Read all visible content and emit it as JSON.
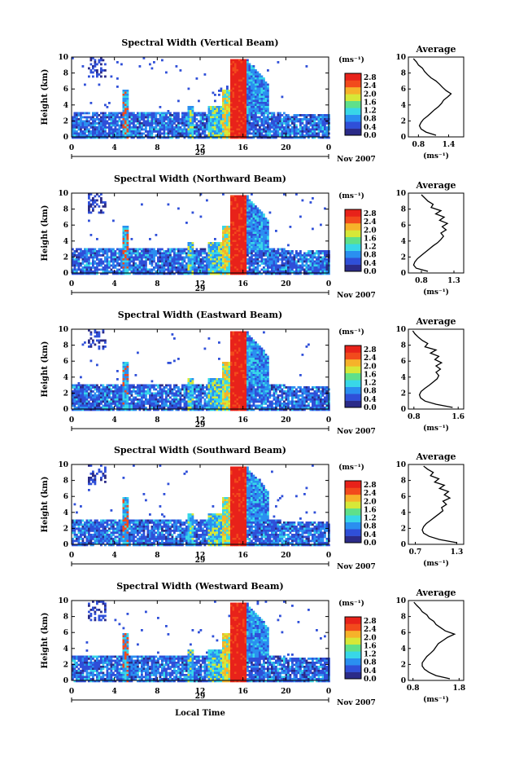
{
  "figure": {
    "xlabel": "Local Time",
    "date_label": "Nov 2007",
    "day_label": "29",
    "unit_label": "(ms⁻¹)",
    "avg_title": "Average"
  },
  "chart_data": [
    {
      "type": "heatmap",
      "title": "Spectral Width (Vertical Beam)",
      "ylabel": "Height (km)",
      "xlabel": "",
      "x_ticks": [
        "0",
        "4",
        "8",
        "12",
        "16",
        "20",
        "0"
      ],
      "y_ticks": [
        "0",
        "2",
        "4",
        "6",
        "8",
        "10"
      ],
      "xlim": [
        0,
        24
      ],
      "ylim": [
        0,
        10
      ],
      "colorbar_ticks": [
        "0.0",
        "0.4",
        "0.8",
        "1.2",
        "1.6",
        "2.0",
        "2.4",
        "2.8"
      ],
      "colorbar_range": [
        0.0,
        3.0
      ],
      "colors": [
        "#2b2b88",
        "#2f4fd8",
        "#2a8ff0",
        "#38d7e8",
        "#5fe08a",
        "#d6e838",
        "#f6b22a",
        "#f24a1c",
        "#e8221a"
      ],
      "avg_profile": {
        "xlabel": "(ms⁻¹)",
        "x_ticks": [
          "0.8",
          "1.4"
        ],
        "x_tick_values": [
          0.8,
          1.4
        ],
        "xlim": [
          0.6,
          1.7
        ],
        "ylim": [
          0,
          10
        ],
        "y_ticks": [
          "0",
          "2",
          "4",
          "6",
          "8",
          "10"
        ],
        "heights": [
          0.2,
          0.6,
          1.0,
          1.4,
          1.8,
          2.2,
          2.6,
          3.0,
          3.4,
          3.8,
          4.2,
          4.6,
          5.0,
          5.4,
          5.8,
          6.2,
          6.6,
          7.0,
          7.4,
          7.8,
          8.2,
          8.6,
          9.0,
          9.4,
          9.8
        ],
        "values": [
          1.15,
          0.95,
          0.85,
          0.82,
          0.85,
          0.9,
          0.98,
          1.05,
          1.12,
          1.2,
          1.26,
          1.3,
          1.38,
          1.45,
          1.35,
          1.28,
          1.22,
          1.15,
          1.05,
          0.98,
          0.92,
          0.88,
          0.8,
          0.76,
          0.7
        ]
      }
    },
    {
      "type": "heatmap",
      "title": "Spectral Width (Northward Beam)",
      "ylabel": "Height (km)",
      "xlabel": "",
      "x_ticks": [
        "0",
        "4",
        "8",
        "12",
        "16",
        "20",
        "0"
      ],
      "y_ticks": [
        "0",
        "2",
        "4",
        "6",
        "8",
        "10"
      ],
      "xlim": [
        0,
        24
      ],
      "ylim": [
        0,
        10
      ],
      "colorbar_ticks": [
        "0.0",
        "0.4",
        "0.8",
        "1.2",
        "1.6",
        "2.0",
        "2.4",
        "2.8"
      ],
      "colorbar_range": [
        0.0,
        3.0
      ],
      "colors": [
        "#2b2b88",
        "#2f4fd8",
        "#2a8ff0",
        "#38d7e8",
        "#5fe08a",
        "#d6e838",
        "#f6b22a",
        "#f24a1c",
        "#e8221a"
      ],
      "avg_profile": {
        "xlabel": "(ms⁻¹)",
        "x_ticks": [
          "0.8",
          "1.3"
        ],
        "x_tick_values": [
          0.8,
          1.3
        ],
        "xlim": [
          0.6,
          1.45
        ],
        "ylim": [
          0,
          10
        ],
        "y_ticks": [
          "0",
          "2",
          "4",
          "6",
          "8",
          "10"
        ],
        "heights": [
          0.2,
          0.6,
          1.0,
          1.4,
          1.8,
          2.2,
          2.6,
          3.0,
          3.4,
          3.8,
          4.2,
          4.6,
          5.0,
          5.4,
          5.8,
          6.2,
          6.6,
          7.0,
          7.4,
          7.8,
          8.2,
          8.6,
          9.0,
          9.4,
          9.8
        ],
        "values": [
          0.9,
          0.72,
          0.68,
          0.7,
          0.74,
          0.8,
          0.86,
          0.92,
          0.98,
          1.05,
          1.1,
          1.14,
          1.1,
          1.18,
          1.12,
          1.2,
          1.08,
          1.15,
          1.02,
          1.1,
          0.95,
          0.98,
          0.9,
          0.85,
          0.8
        ]
      }
    },
    {
      "type": "heatmap",
      "title": "Spectral Width (Eastward Beam)",
      "ylabel": "Height (km)",
      "xlabel": "",
      "x_ticks": [
        "0",
        "4",
        "8",
        "12",
        "16",
        "20",
        "0"
      ],
      "y_ticks": [
        "0",
        "2",
        "4",
        "6",
        "8",
        "10"
      ],
      "xlim": [
        0,
        24
      ],
      "ylim": [
        0,
        10
      ],
      "colorbar_ticks": [
        "0.0",
        "0.4",
        "0.8",
        "1.2",
        "1.6",
        "2.0",
        "2.4",
        "2.8"
      ],
      "colorbar_range": [
        0.0,
        3.0
      ],
      "colors": [
        "#2b2b88",
        "#2f4fd8",
        "#2a8ff0",
        "#38d7e8",
        "#5fe08a",
        "#d6e838",
        "#f6b22a",
        "#f24a1c",
        "#e8221a"
      ],
      "avg_profile": {
        "xlabel": "(ms⁻¹)",
        "x_ticks": [
          "0.8",
          "1.6"
        ],
        "x_tick_values": [
          0.8,
          1.6
        ],
        "xlim": [
          0.7,
          1.7
        ],
        "ylim": [
          0,
          10
        ],
        "y_ticks": [
          "0",
          "2",
          "4",
          "6",
          "8",
          "10"
        ],
        "heights": [
          0.2,
          0.6,
          1.0,
          1.4,
          1.8,
          2.2,
          2.6,
          3.0,
          3.4,
          3.8,
          4.2,
          4.6,
          5.0,
          5.4,
          5.8,
          6.2,
          6.6,
          7.0,
          7.4,
          7.8,
          8.2,
          8.6,
          9.0,
          9.4,
          9.8
        ],
        "values": [
          1.5,
          1.2,
          1.0,
          0.92,
          0.9,
          0.93,
          1.0,
          1.08,
          1.15,
          1.22,
          1.25,
          1.2,
          1.28,
          1.2,
          1.3,
          1.18,
          1.25,
          1.1,
          1.2,
          1.0,
          1.05,
          0.95,
          0.88,
          0.82,
          0.78
        ]
      }
    },
    {
      "type": "heatmap",
      "title": "Spectral Width (Southward Beam)",
      "ylabel": "Height (km)",
      "xlabel": "",
      "x_ticks": [
        "0",
        "4",
        "8",
        "12",
        "16",
        "20",
        "0"
      ],
      "y_ticks": [
        "0",
        "2",
        "4",
        "6",
        "8",
        "10"
      ],
      "xlim": [
        0,
        24
      ],
      "ylim": [
        0,
        10
      ],
      "colorbar_ticks": [
        "0.0",
        "0.4",
        "0.8",
        "1.2",
        "1.6",
        "2.0",
        "2.4",
        "2.8"
      ],
      "colorbar_range": [
        0.0,
        3.0
      ],
      "colors": [
        "#2b2b88",
        "#2f4fd8",
        "#2a8ff0",
        "#38d7e8",
        "#5fe08a",
        "#d6e838",
        "#f6b22a",
        "#f24a1c",
        "#e8221a"
      ],
      "avg_profile": {
        "xlabel": "(ms⁻¹)",
        "x_ticks": [
          "0.7",
          "1.3"
        ],
        "x_tick_values": [
          0.7,
          1.3
        ],
        "xlim": [
          0.6,
          1.4
        ],
        "ylim": [
          0,
          10
        ],
        "y_ticks": [
          "0",
          "2",
          "4",
          "6",
          "8",
          "10"
        ],
        "heights": [
          0.2,
          0.6,
          1.0,
          1.4,
          1.8,
          2.2,
          2.6,
          3.0,
          3.4,
          3.8,
          4.2,
          4.6,
          5.0,
          5.4,
          5.8,
          6.2,
          6.6,
          7.0,
          7.4,
          7.8,
          8.2,
          8.6,
          9.0,
          9.4,
          9.8
        ],
        "values": [
          1.3,
          1.05,
          0.9,
          0.82,
          0.8,
          0.82,
          0.86,
          0.92,
          0.98,
          1.04,
          1.1,
          1.08,
          1.15,
          1.1,
          1.2,
          1.12,
          1.18,
          1.05,
          1.12,
          0.98,
          1.04,
          0.92,
          0.96,
          0.88,
          0.82
        ]
      }
    },
    {
      "type": "heatmap",
      "title": "Spectral Width (Westward Beam)",
      "ylabel": "Height (km)",
      "xlabel": "Local Time",
      "x_ticks": [
        "0",
        "4",
        "8",
        "12",
        "16",
        "20",
        "0"
      ],
      "y_ticks": [
        "0",
        "2",
        "4",
        "6",
        "8",
        "10"
      ],
      "xlim": [
        0,
        24
      ],
      "ylim": [
        0,
        10
      ],
      "colorbar_ticks": [
        "0.0",
        "0.4",
        "0.8",
        "1.2",
        "1.6",
        "2.0",
        "2.4",
        "2.8"
      ],
      "colorbar_range": [
        0.0,
        3.0
      ],
      "colors": [
        "#2b2b88",
        "#2f4fd8",
        "#2a8ff0",
        "#38d7e8",
        "#5fe08a",
        "#d6e838",
        "#f6b22a",
        "#f24a1c",
        "#e8221a"
      ],
      "avg_profile": {
        "xlabel": "(ms⁻¹)",
        "x_ticks": [
          "0.8",
          "1.8"
        ],
        "x_tick_values": [
          0.8,
          1.8
        ],
        "xlim": [
          0.7,
          1.9
        ],
        "ylim": [
          0,
          10
        ],
        "y_ticks": [
          "0",
          "2",
          "4",
          "6",
          "8",
          "10"
        ],
        "heights": [
          0.2,
          0.6,
          1.0,
          1.4,
          1.8,
          2.2,
          2.6,
          3.0,
          3.4,
          3.8,
          4.2,
          4.6,
          5.0,
          5.4,
          5.8,
          6.2,
          6.6,
          7.0,
          7.4,
          7.8,
          8.2,
          8.6,
          9.0,
          9.4,
          9.8
        ],
        "values": [
          1.6,
          1.3,
          1.15,
          1.05,
          1.0,
          1.0,
          1.05,
          1.1,
          1.18,
          1.25,
          1.3,
          1.35,
          1.45,
          1.55,
          1.7,
          1.5,
          1.4,
          1.3,
          1.25,
          1.15,
          1.1,
          1.0,
          0.95,
          0.88,
          0.82
        ]
      }
    }
  ]
}
